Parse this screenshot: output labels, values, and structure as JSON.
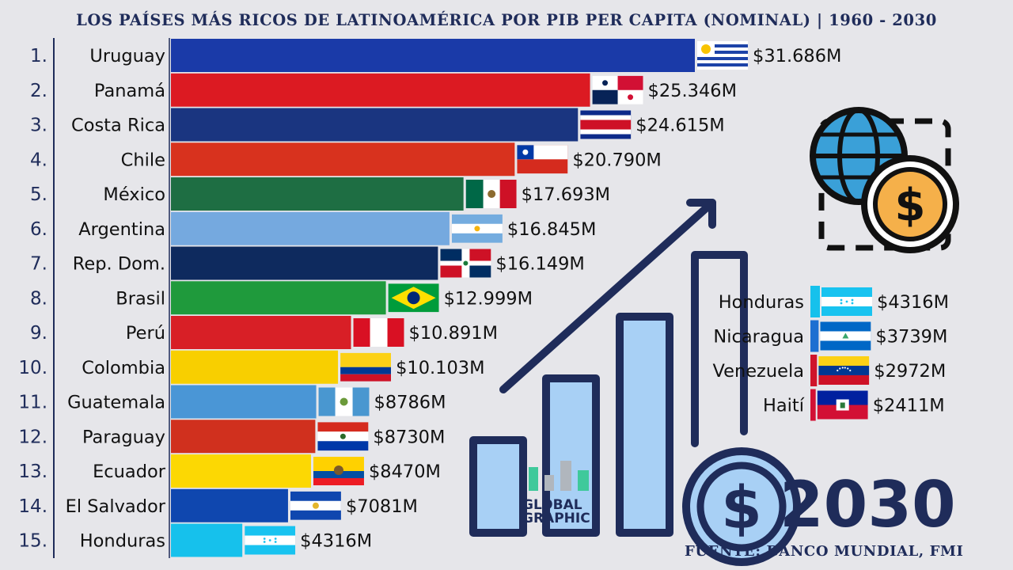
{
  "title": "LOS PAÍSES MÁS RICOS DE LATINOAMÉRICA POR PIB PER CAPITA (NOMINAL) | 1960 - 2030",
  "year": "2030",
  "source": "FUENTE: BANCO MUNDIAL, FMI",
  "brand": {
    "line1": "GLOBAL",
    "line2": "GRAPHIC"
  },
  "colors": {
    "axis": "#1f2c5a",
    "icon": "#1f2c5a",
    "coin": "#9ec8ee",
    "globe": "#3aa0d8",
    "gold": "#f5a623"
  },
  "chart_data": {
    "type": "bar",
    "orientation": "horizontal",
    "categories": [
      "Uruguay",
      "Panamá",
      "Costa Rica",
      "Chile",
      "México",
      "Argentina",
      "Rep. Dom.",
      "Brasil",
      "Perú",
      "Colombia",
      "Guatemala",
      "Paraguay",
      "Ecuador",
      "El Salvador",
      "Honduras"
    ],
    "ranks": [
      "1.",
      "2.",
      "3.",
      "4.",
      "5.",
      "6.",
      "7.",
      "8.",
      "9.",
      "10.",
      "11.",
      "12.",
      "13.",
      "14.",
      "15."
    ],
    "values": [
      31686,
      25346,
      24615,
      20790,
      17693,
      16845,
      16149,
      12999,
      10891,
      10103,
      8786,
      8730,
      8470,
      7081,
      4316
    ],
    "value_labels": [
      "$31.686M",
      "$25.346M",
      "$24.615M",
      "$20.790M",
      "$17.693M",
      "$16.845M",
      "$16.149M",
      "$12.999M",
      "$10.891M",
      "$10.103M",
      "$8786M",
      "$8730M",
      "$8470M",
      "$7081M",
      "$4316M"
    ],
    "bar_colors": [
      "#1a3aa8",
      "#dc1a22",
      "#1a3580",
      "#d8321e",
      "#1e6e43",
      "#75a9df",
      "#0e2a5e",
      "#1f9a3c",
      "#d81f26",
      "#f8cf00",
      "#4a96d6",
      "#d0301e",
      "#fcd803",
      "#0f47af",
      "#16c1ec"
    ],
    "flags": [
      "uruguay",
      "panama",
      "costa-rica",
      "chile",
      "mexico",
      "argentina",
      "dominican-republic",
      "brazil",
      "peru",
      "colombia",
      "guatemala",
      "paraguay",
      "ecuador",
      "el-salvador",
      "honduras"
    ],
    "secondary": [
      {
        "name": "Honduras",
        "value": 4316,
        "label": "$4316M",
        "color": "#16c1ec",
        "flag": "honduras"
      },
      {
        "name": "Nicaragua",
        "value": 3739,
        "label": "$3739M",
        "color": "#1d6fd1",
        "flag": "nicaragua"
      },
      {
        "name": "Venezuela",
        "value": 2972,
        "label": "$2972M",
        "color": "#cf142b",
        "flag": "venezuela"
      },
      {
        "name": "Haití",
        "value": 2411,
        "label": "$2411M",
        "color": "#d21034",
        "flag": "haiti"
      }
    ]
  }
}
